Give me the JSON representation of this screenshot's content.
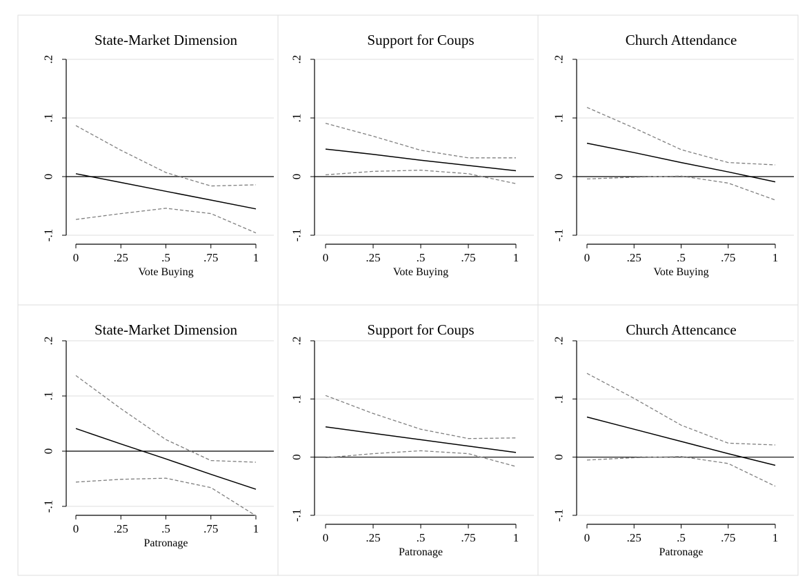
{
  "colors": {
    "background": "#ffffff",
    "panel_border": "#dddddd",
    "gridline": "#dcdcdc",
    "estimate_line": "#000000",
    "ci_line": "#7f7f7f"
  },
  "chart_data": [
    {
      "type": "line",
      "title": "State-Market Dimension",
      "xlabel": "Vote Buying",
      "x_ticks": [
        "0",
        ".25",
        ".5",
        ".75",
        "1"
      ],
      "y_ticks": [
        "-.1",
        "0",
        ".1",
        ".2"
      ],
      "xlim": [
        0,
        1
      ],
      "ylim": [
        -0.1,
        0.2
      ],
      "grid": true,
      "x": [
        0,
        0.25,
        0.5,
        0.75,
        1
      ],
      "series": [
        {
          "role": "estimate",
          "values": [
            0.005,
            -0.01,
            -0.025,
            -0.04,
            -0.055
          ]
        },
        {
          "role": "upper",
          "values": [
            0.087,
            0.045,
            0.007,
            -0.016,
            -0.014
          ]
        },
        {
          "role": "lower",
          "values": [
            -0.073,
            -0.063,
            -0.054,
            -0.063,
            -0.096
          ]
        }
      ]
    },
    {
      "type": "line",
      "title": "Support for Coups",
      "xlabel": "Vote Buying",
      "x_ticks": [
        "0",
        ".25",
        ".5",
        ".75",
        "1"
      ],
      "y_ticks": [
        "-.1",
        "0",
        ".1",
        ".2"
      ],
      "xlim": [
        0,
        1
      ],
      "ylim": [
        -0.1,
        0.2
      ],
      "grid": true,
      "x": [
        0,
        0.25,
        0.5,
        0.75,
        1
      ],
      "series": [
        {
          "role": "estimate",
          "values": [
            0.047,
            0.038,
            0.028,
            0.019,
            0.01
          ]
        },
        {
          "role": "upper",
          "values": [
            0.091,
            0.069,
            0.045,
            0.032,
            0.032
          ]
        },
        {
          "role": "lower",
          "values": [
            0.003,
            0.009,
            0.011,
            0.005,
            -0.012
          ]
        }
      ]
    },
    {
      "type": "line",
      "title": "Church Attendance",
      "xlabel": "Vote Buying",
      "x_ticks": [
        "0",
        ".25",
        ".5",
        ".75",
        "1"
      ],
      "y_ticks": [
        "-.1",
        "0",
        ".1",
        ".2"
      ],
      "xlim": [
        0,
        1
      ],
      "ylim": [
        -0.1,
        0.2
      ],
      "grid": true,
      "x": [
        0,
        0.25,
        0.5,
        0.75,
        1
      ],
      "series": [
        {
          "role": "estimate",
          "values": [
            0.057,
            0.041,
            0.024,
            0.008,
            -0.009
          ]
        },
        {
          "role": "upper",
          "values": [
            0.118,
            0.083,
            0.046,
            0.024,
            0.02
          ]
        },
        {
          "role": "lower",
          "values": [
            -0.004,
            -0.001,
            0.001,
            -0.011,
            -0.04
          ]
        }
      ]
    },
    {
      "type": "line",
      "title": "State-Market Dimension",
      "xlabel": "Patronage",
      "x_ticks": [
        "0",
        ".25",
        ".5",
        ".75",
        "1"
      ],
      "y_ticks": [
        "-.1",
        "0",
        ".1",
        ".2"
      ],
      "xlim": [
        0,
        1
      ],
      "ylim": [
        -0.1,
        0.2
      ],
      "grid": true,
      "x": [
        0,
        0.25,
        0.5,
        0.75,
        1
      ],
      "series": [
        {
          "role": "estimate",
          "values": [
            0.041,
            0.013,
            -0.014,
            -0.042,
            -0.069
          ]
        },
        {
          "role": "upper",
          "values": [
            0.137,
            0.077,
            0.021,
            -0.017,
            -0.02
          ]
        },
        {
          "role": "lower",
          "values": [
            -0.056,
            -0.051,
            -0.049,
            -0.066,
            -0.117
          ]
        }
      ]
    },
    {
      "type": "line",
      "title": "Support for Coups",
      "xlabel": "Patronage",
      "x_ticks": [
        "0",
        ".25",
        ".5",
        ".75",
        "1"
      ],
      "y_ticks": [
        "-.1",
        "0",
        ".1",
        ".2"
      ],
      "xlim": [
        0,
        1
      ],
      "ylim": [
        -0.1,
        0.2
      ],
      "grid": true,
      "x": [
        0,
        0.25,
        0.5,
        0.75,
        1
      ],
      "series": [
        {
          "role": "estimate",
          "values": [
            0.052,
            0.041,
            0.03,
            0.019,
            0.008
          ]
        },
        {
          "role": "upper",
          "values": [
            0.106,
            0.075,
            0.048,
            0.032,
            0.033
          ]
        },
        {
          "role": "lower",
          "values": [
            -0.001,
            0.006,
            0.011,
            0.006,
            -0.016
          ]
        }
      ]
    },
    {
      "type": "line",
      "title": "Church Attencance",
      "xlabel": "Patronage",
      "x_ticks": [
        "0",
        ".25",
        ".5",
        ".75",
        "1"
      ],
      "y_ticks": [
        "-.1",
        "0",
        ".1",
        ".2"
      ],
      "xlim": [
        0,
        1
      ],
      "ylim": [
        -0.1,
        0.2
      ],
      "grid": true,
      "x": [
        0,
        0.25,
        0.5,
        0.75,
        1
      ],
      "series": [
        {
          "role": "estimate",
          "values": [
            0.069,
            0.048,
            0.027,
            0.006,
            -0.014
          ]
        },
        {
          "role": "upper",
          "values": [
            0.144,
            0.101,
            0.055,
            0.024,
            0.021
          ]
        },
        {
          "role": "lower",
          "values": [
            -0.005,
            -0.001,
            0.001,
            -0.011,
            -0.05
          ]
        }
      ]
    }
  ]
}
